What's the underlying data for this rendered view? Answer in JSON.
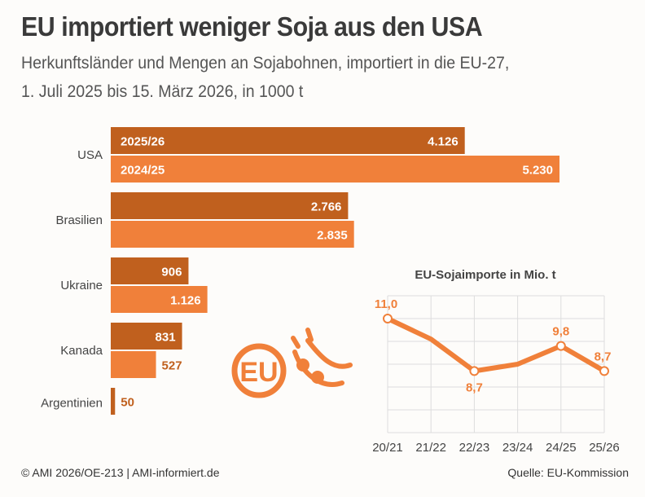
{
  "title": "EU importiert weniger Soja aus den USA",
  "subtitle_line1": "Herkunftsländer und Mengen an Sojabohnen, importiert in die EU-27,",
  "subtitle_line2": "1. Juli 2025 bis 15. März 2026, in 1000 t",
  "footer_left": "© AMI 2026/OE-213 | AMI-informiert.de",
  "footer_right": "Quelle: EU-Kommission",
  "logo_text": "EU",
  "colors": {
    "series_2025_26": "#c0601e",
    "series_2024_25": "#f0803a",
    "line": "#f0803a",
    "text": "#3a3a3a"
  },
  "chart_data": [
    {
      "type": "bar",
      "orientation": "horizontal",
      "categories": [
        "USA",
        "Brasilien",
        "Ukraine",
        "Kanada",
        "Argentinien"
      ],
      "series": [
        {
          "name": "2025/26",
          "values": [
            4126,
            2766,
            906,
            831,
            50
          ],
          "labels": [
            "4.126",
            "2.766",
            "906",
            "831",
            "50"
          ]
        },
        {
          "name": "2024/25",
          "values": [
            5230,
            2835,
            1126,
            527,
            null
          ],
          "labels": [
            "5.230",
            "2.835",
            "1.126",
            "527",
            ""
          ]
        }
      ],
      "xlim": [
        0,
        5230
      ],
      "grid": false
    },
    {
      "type": "line",
      "title": "EU-Sojaimporte in Mio. t",
      "categories": [
        "20/21",
        "21/22",
        "22/23",
        "23/24",
        "24/25",
        "25/26"
      ],
      "values": [
        11.0,
        10.1,
        8.7,
        9.0,
        9.8,
        8.7
      ],
      "labels": [
        "11,0",
        "",
        "8,7",
        "",
        "9,8",
        "8,7"
      ],
      "ylim": [
        6,
        12
      ],
      "grid": true
    }
  ]
}
